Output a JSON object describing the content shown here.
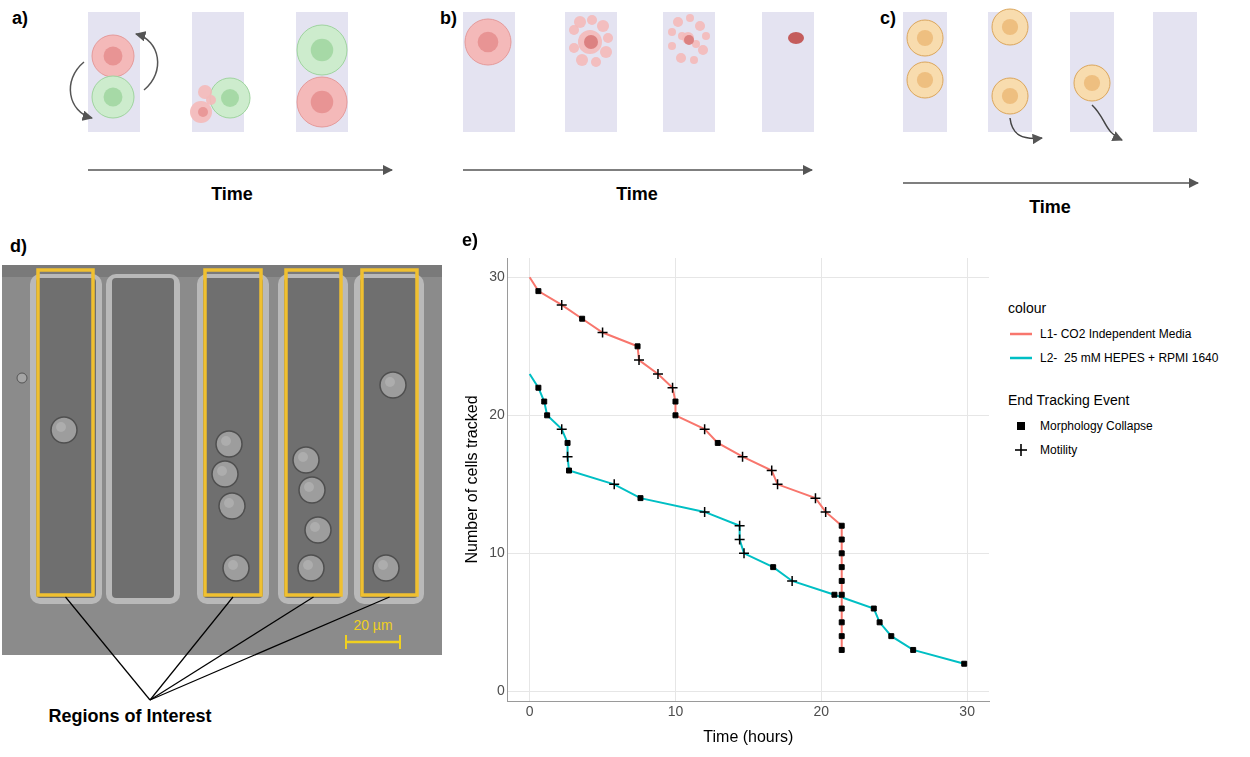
{
  "panels": {
    "a": {
      "label": "a)",
      "axis_label": "Time"
    },
    "b": {
      "label": "b)",
      "axis_label": "Time"
    },
    "c": {
      "label": "c)",
      "axis_label": "Time"
    },
    "d": {
      "label": "d)",
      "scale_bar": "20 µm",
      "annotation": "Regions of Interest"
    },
    "e": {
      "label": "e)"
    }
  },
  "chart_data": {
    "type": "line",
    "x_label": "Time (hours)",
    "y_label": "Number of cells tracked",
    "xlim": [
      -1.5,
      31.5
    ],
    "xticks": [
      0,
      10,
      20,
      30
    ],
    "ylim": [
      -0.7,
      31.4
    ],
    "yticks": [
      0,
      10,
      20,
      30
    ],
    "grid": true,
    "legend": "right",
    "legend_title": "colour",
    "series": [
      {
        "name": "L1- CO2 Independent Media",
        "color": "#F8766D",
        "x": [
          0,
          0.6,
          2.2,
          3.6,
          5.0,
          7.4,
          7.5,
          8.8,
          9.8,
          10.0,
          10.0,
          12.0,
          12.9,
          14.6,
          16.6,
          17.0,
          19.6,
          20.3,
          21.4,
          21.4,
          21.4,
          21.4,
          21.4,
          21.4,
          21.4,
          21.4,
          21.4,
          21.4
        ],
        "values": [
          30,
          29,
          28,
          27,
          26,
          25,
          24,
          23,
          22,
          21,
          20,
          19,
          18,
          17,
          16,
          15,
          14,
          13,
          12,
          11,
          10,
          9,
          8,
          7,
          6,
          5,
          4,
          3
        ],
        "markers": [
          null,
          "square",
          "cross",
          "square",
          "cross",
          "square",
          "cross",
          "cross",
          "cross",
          "square",
          "square",
          "cross",
          "square",
          "cross",
          "cross",
          "cross",
          "cross",
          "cross",
          "square",
          "square",
          "square",
          "square",
          "square",
          "square",
          "square",
          "square",
          "square",
          "square"
        ]
      },
      {
        "name": "L2-  25 mM HEPES + RPMI 1640",
        "color": "#00BFC4",
        "x": [
          0,
          0.6,
          1.0,
          1.2,
          2.2,
          2.6,
          2.6,
          2.7,
          5.8,
          7.6,
          12.0,
          14.4,
          14.4,
          14.7,
          16.7,
          18.0,
          20.9,
          23.6,
          24.0,
          24.8,
          26.3,
          29.8
        ],
        "values": [
          23,
          22,
          21,
          20,
          19,
          18,
          17,
          16,
          15,
          14,
          13,
          12,
          11,
          10,
          9,
          8,
          7,
          6,
          5,
          4,
          3,
          2
        ],
        "markers": [
          null,
          "square",
          "square",
          "square",
          "cross",
          "square",
          "cross",
          "square",
          "cross",
          "square",
          "cross",
          "cross",
          "cross",
          "cross",
          "square",
          "cross",
          "square",
          "square",
          "square",
          "square",
          "square",
          "square"
        ]
      }
    ],
    "marker_legend": {
      "title": "End Tracking Event",
      "items": [
        {
          "name": "Morphology Collapse",
          "marker": "square"
        },
        {
          "name": "Motility",
          "marker": "cross"
        }
      ]
    }
  }
}
